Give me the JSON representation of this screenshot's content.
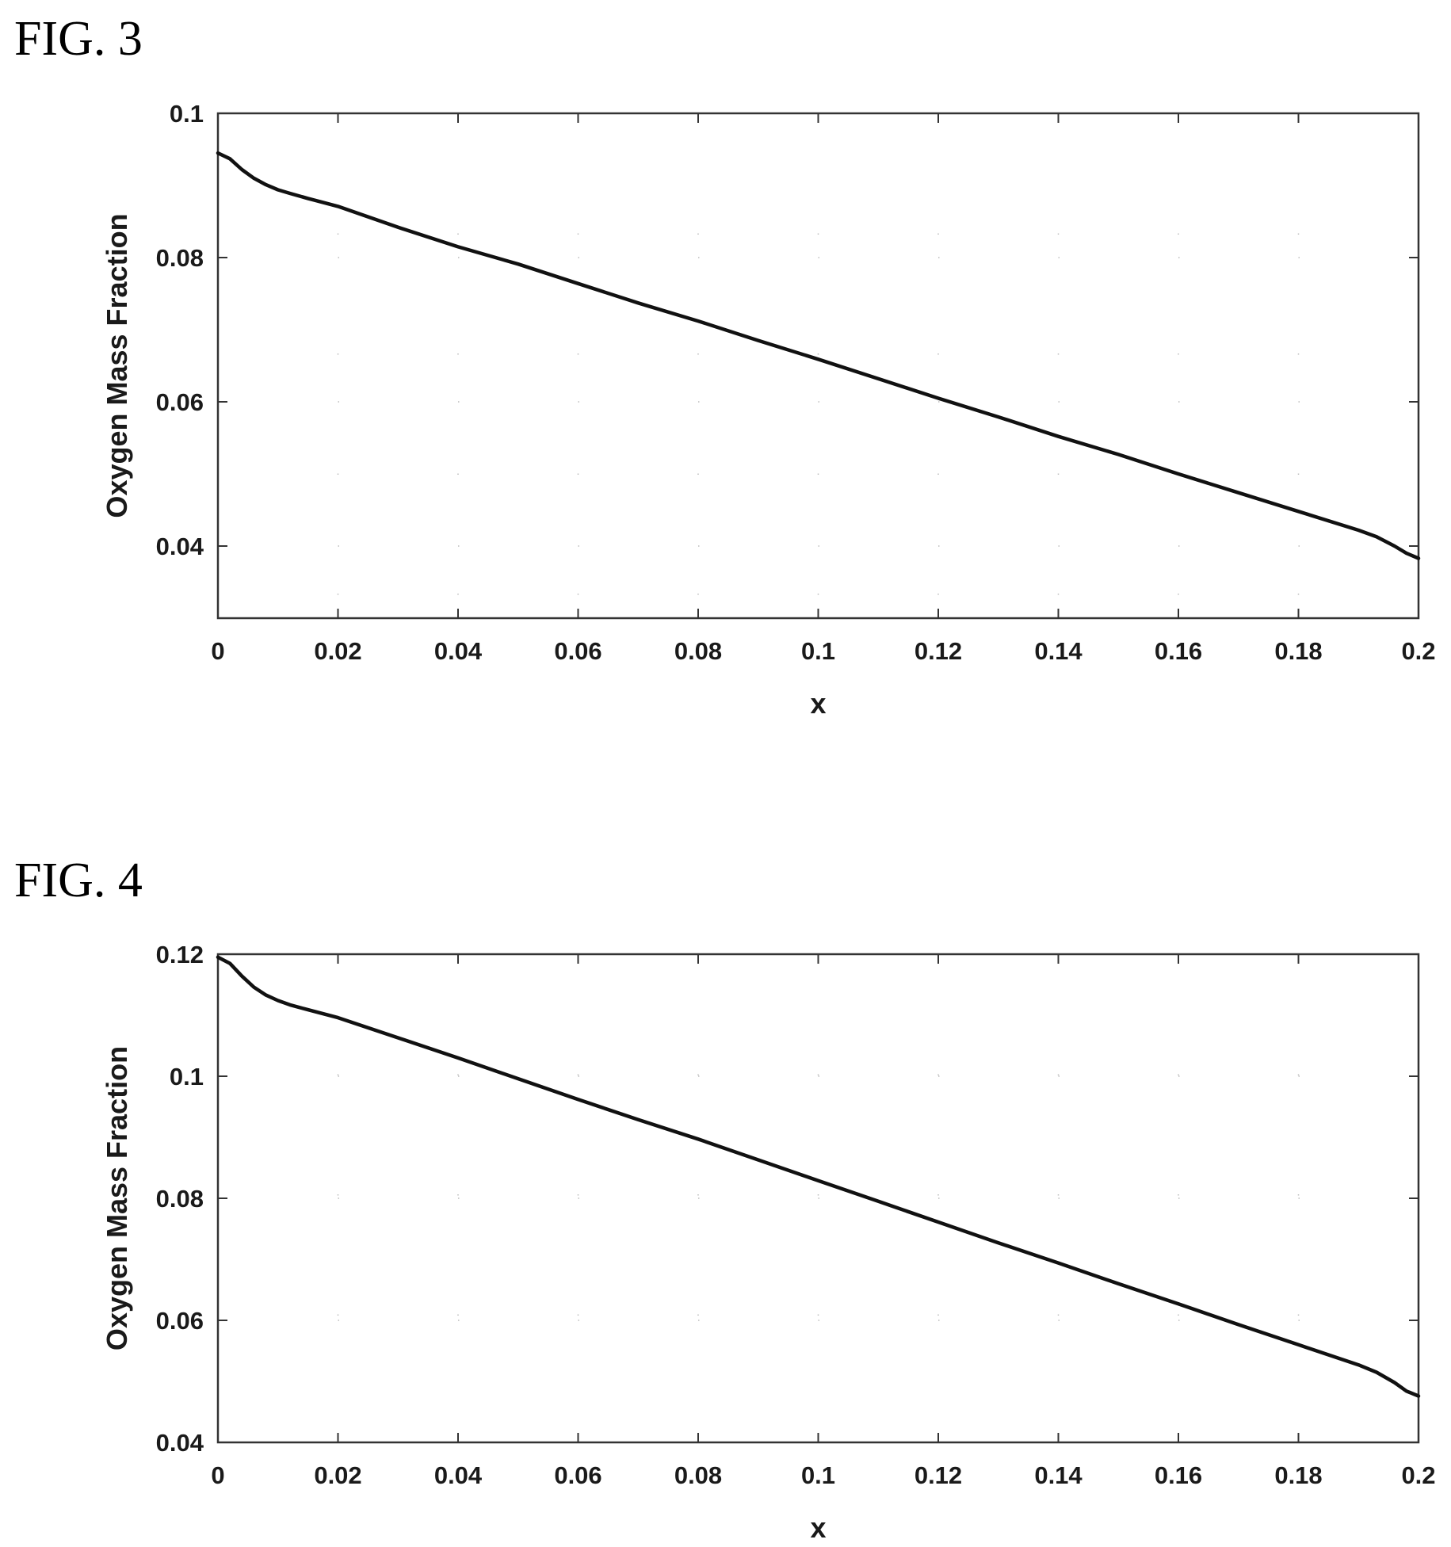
{
  "figures": [
    {
      "label": "FIG. 3",
      "chart_data": {
        "type": "line",
        "xlabel": "x",
        "ylabel": "Oxygen Mass Fraction",
        "xlim": [
          0,
          0.2
        ],
        "ylim": [
          0.03,
          0.1
        ],
        "xticks": [
          "0",
          "0.02",
          "0.04",
          "0.06",
          "0.08",
          "0.1",
          "0.12",
          "0.14",
          "0.16",
          "0.18",
          "0.2"
        ],
        "yticks": [
          "0.04",
          "0.06",
          "0.08",
          "0.1"
        ],
        "grid": "dotted",
        "series": [
          {
            "x": [
              0,
              0.002,
              0.004,
              0.006,
              0.008,
              0.01,
              0.012,
              0.015,
              0.02,
              0.03,
              0.04,
              0.05,
              0.06,
              0.07,
              0.08,
              0.09,
              0.1,
              0.11,
              0.12,
              0.13,
              0.14,
              0.15,
              0.16,
              0.17,
              0.18,
              0.19,
              0.193,
              0.196,
              0.198,
              0.2
            ],
            "y": [
              0.0945,
              0.0937,
              0.0922,
              0.091,
              0.0901,
              0.0894,
              0.0889,
              0.0882,
              0.0871,
              0.0842,
              0.0815,
              0.0791,
              0.0764,
              0.0737,
              0.0712,
              0.0685,
              0.0659,
              0.0632,
              0.0605,
              0.0579,
              0.0552,
              0.0527,
              0.05,
              0.0474,
              0.0448,
              0.0422,
              0.0413,
              0.04,
              0.039,
              0.0383
            ]
          }
        ]
      }
    },
    {
      "label": "FIG. 4",
      "chart_data": {
        "type": "line",
        "xlabel": "x",
        "ylabel": "Oxygen Mass Fraction",
        "xlim": [
          0,
          0.2
        ],
        "ylim": [
          0.04,
          0.12
        ],
        "xticks": [
          "0",
          "0.02",
          "0.04",
          "0.06",
          "0.08",
          "0.1",
          "0.12",
          "0.14",
          "0.16",
          "0.18",
          "0.2"
        ],
        "yticks": [
          "0.04",
          "0.06",
          "0.08",
          "0.1",
          "0.12"
        ],
        "grid": "dotted",
        "series": [
          {
            "x": [
              0,
              0.002,
              0.004,
              0.006,
              0.008,
              0.01,
              0.012,
              0.015,
              0.02,
              0.03,
              0.04,
              0.05,
              0.06,
              0.07,
              0.08,
              0.09,
              0.1,
              0.11,
              0.12,
              0.13,
              0.14,
              0.15,
              0.16,
              0.17,
              0.18,
              0.19,
              0.193,
              0.196,
              0.198,
              0.2
            ],
            "y": [
              0.1195,
              0.1185,
              0.1164,
              0.1146,
              0.1133,
              0.1124,
              0.1117,
              0.1109,
              0.1096,
              0.1063,
              0.103,
              0.0996,
              0.0962,
              0.0929,
              0.0897,
              0.0863,
              0.0829,
              0.0795,
              0.0761,
              0.0727,
              0.0694,
              0.066,
              0.0627,
              0.0593,
              0.056,
              0.0527,
              0.0515,
              0.0498,
              0.0484,
              0.0476
            ]
          }
        ]
      }
    }
  ]
}
